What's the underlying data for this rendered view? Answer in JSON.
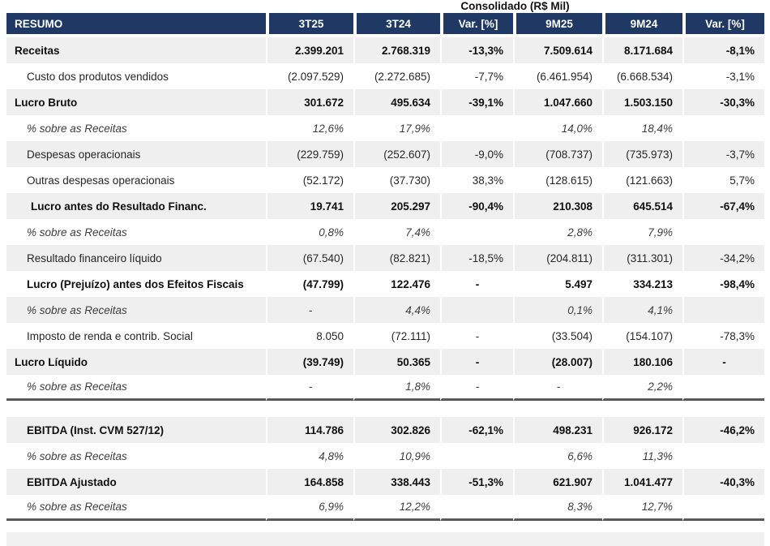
{
  "title": "Consolidado (R$ Mil)",
  "colors": {
    "header_bg": "#1f3864",
    "header_text": "#ffffff",
    "shaded_row_bg": "#efefef",
    "section_divider": "#595959",
    "bottom_strip_bg": "#f1f1f1"
  },
  "table": {
    "header": {
      "label_col": "RESUMO",
      "value_cols": [
        "3T25",
        "3T24",
        "Var. [%]",
        "9M25",
        "9M24",
        "Var. [%]"
      ]
    },
    "main_rows": [
      {
        "label": "Receitas",
        "emphasis": "bold",
        "indent": 0,
        "shade": true,
        "values": [
          "2.399.201",
          "2.768.319",
          "-13,3%",
          "7.509.614",
          "8.171.684",
          "-8,1%"
        ]
      },
      {
        "label": "Custo dos produtos vendidos",
        "emphasis": "normal",
        "indent": 1,
        "shade": false,
        "values": [
          "(2.097.529)",
          "(2.272.685)",
          "-7,7%",
          "(6.461.954)",
          "(6.668.534)",
          "-3,1%"
        ]
      },
      {
        "label": "Lucro Bruto",
        "emphasis": "bold",
        "indent": 0,
        "shade": true,
        "values": [
          "301.672",
          "495.634",
          "-39,1%",
          "1.047.660",
          "1.503.150",
          "-30,3%"
        ]
      },
      {
        "label": "% sobre as Receitas",
        "emphasis": "italic",
        "indent": 1,
        "shade": false,
        "values": [
          "12,6%",
          "17,9%",
          "",
          "14,0%",
          "18,4%",
          ""
        ]
      },
      {
        "label": "Despesas operacionais",
        "emphasis": "normal",
        "indent": 1,
        "shade": true,
        "values": [
          "(229.759)",
          "(252.607)",
          "-9,0%",
          "(708.737)",
          "(735.973)",
          "-3,7%"
        ]
      },
      {
        "label": "Outras despesas operacionais",
        "emphasis": "normal",
        "indent": 1,
        "shade": false,
        "values": [
          "(52.172)",
          "(37.730)",
          "38,3%",
          "(128.615)",
          "(121.663)",
          "5,7%"
        ]
      },
      {
        "label": "Lucro antes do Resultado Financ.",
        "emphasis": "bold",
        "indent": 2,
        "shade": true,
        "values": [
          "19.741",
          "205.297",
          "-90,4%",
          "210.308",
          "645.514",
          "-67,4%"
        ]
      },
      {
        "label": "% sobre as Receitas",
        "emphasis": "italic",
        "indent": 1,
        "shade": false,
        "values": [
          "0,8%",
          "7,4%",
          "",
          "2,8%",
          "7,9%",
          ""
        ]
      },
      {
        "label": "Resultado financeiro líquido",
        "emphasis": "normal",
        "indent": 1,
        "shade": true,
        "values": [
          "(67.540)",
          "(82.821)",
          "-18,5%",
          "(204.811)",
          "(311.301)",
          "-34,2%"
        ]
      },
      {
        "label": "Lucro (Prejuízo) antes dos Efeitos Fiscais",
        "emphasis": "bold",
        "indent": 1,
        "shade": false,
        "values": [
          "(47.799)",
          "122.476",
          "-",
          "5.497",
          "334.213",
          "-98,4%"
        ]
      },
      {
        "label": "% sobre as Receitas",
        "emphasis": "italic",
        "indent": 1,
        "shade": true,
        "values": [
          "-",
          "4,4%",
          "",
          "0,1%",
          "4,1%",
          ""
        ]
      },
      {
        "label": "Imposto de renda e contrib. Social",
        "emphasis": "normal",
        "indent": 1,
        "shade": false,
        "values": [
          "8.050",
          "(72.111)",
          "-",
          "(33.504)",
          "(154.107)",
          "-78,3%"
        ]
      },
      {
        "label": "Lucro Líquido",
        "emphasis": "bold",
        "indent": 0,
        "shade": true,
        "values": [
          "(39.749)",
          "50.365",
          "-",
          "(28.007)",
          "180.106",
          "-"
        ]
      },
      {
        "label": "% sobre as Receitas",
        "emphasis": "italic",
        "indent": 1,
        "shade": false,
        "thick_bottom": true,
        "values": [
          "-",
          "1,8%",
          "-",
          "-",
          "2,2%",
          ""
        ]
      }
    ],
    "ebitda_rows": [
      {
        "label": "EBITDA (Inst. CVM 527/12)",
        "emphasis": "bold",
        "indent": 1,
        "shade": true,
        "values": [
          "114.786",
          "302.826",
          "-62,1%",
          "498.231",
          "926.172",
          "-46,2%"
        ]
      },
      {
        "label": "% sobre as Receitas",
        "emphasis": "italic",
        "indent": 1,
        "shade": false,
        "values": [
          "4,8%",
          "10,9%",
          "",
          "6,6%",
          "11,3%",
          ""
        ]
      },
      {
        "label": "EBITDA Ajustado",
        "emphasis": "bold",
        "indent": 1,
        "shade": true,
        "values": [
          "164.858",
          "338.443",
          "-51,3%",
          "621.907",
          "1.041.477",
          "-40,3%"
        ]
      },
      {
        "label": "% sobre as Receitas",
        "emphasis": "italic",
        "indent": 1,
        "shade": false,
        "thick_bottom": true,
        "values": [
          "6,9%",
          "12,2%",
          "",
          "8,3%",
          "12,7%",
          ""
        ]
      }
    ]
  }
}
